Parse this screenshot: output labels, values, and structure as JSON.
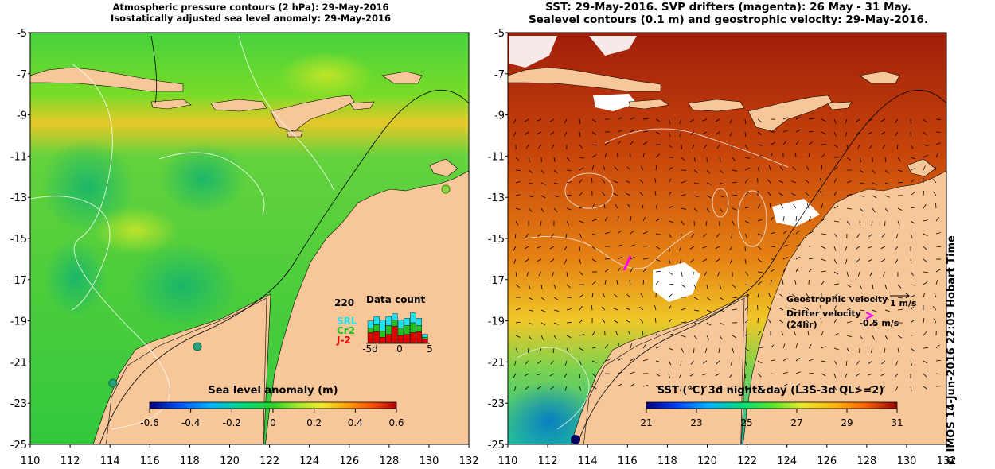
{
  "left_panel": {
    "title_line1": "Atmospheric pressure contours (2 hPa): 29-May-2016",
    "title_line2": "Isostatically adjusted sea level anomaly: 29-May-2016",
    "y_ticks": [
      "-5",
      "-7",
      "-9",
      "-11",
      "-13",
      "-15",
      "-17",
      "-19",
      "-21",
      "-23",
      "-25"
    ],
    "x_ticks": [
      "110",
      "112",
      "114",
      "116",
      "118",
      "120",
      "122",
      "124",
      "126",
      "128",
      "130",
      "132"
    ],
    "colorbar": {
      "label": "Sea level anomaly (m)",
      "ticks": [
        "-0.6",
        "-0.4",
        "-0.2",
        "0",
        "0.2",
        "0.4",
        "0.6"
      ],
      "range": [
        -0.6,
        0.6
      ],
      "colors": [
        "#000080",
        "#0050ff",
        "#00b4ff",
        "#00dc78",
        "#28d228",
        "#a0e628",
        "#f0e628",
        "#ffa000",
        "#ff5000",
        "#b40000"
      ]
    },
    "data_count": {
      "title": "Data count",
      "max_label": "220",
      "legend": [
        {
          "label": "SRL",
          "color": "#20e0f0"
        },
        {
          "label": "Cr2",
          "color": "#20c020"
        },
        {
          "label": "J-2",
          "color": "#e00000"
        }
      ],
      "x_ticks": [
        "-5d",
        "0",
        "5"
      ],
      "days": [
        -5,
        -4,
        -3,
        -2,
        -1,
        0,
        1,
        2,
        3,
        4
      ],
      "stacks": [
        [
          40,
          25,
          55
        ],
        [
          45,
          40,
          60
        ],
        [
          60,
          35,
          30
        ],
        [
          50,
          50,
          45
        ],
        [
          35,
          35,
          90
        ],
        [
          45,
          40,
          40
        ],
        [
          40,
          50,
          45
        ],
        [
          55,
          55,
          55
        ],
        [
          40,
          35,
          60
        ],
        [
          15,
          10,
          20
        ]
      ]
    }
  },
  "right_panel": {
    "title_line1": "SST: 29-May-2016. SVP drifters (magenta): 26 May - 31 May.",
    "title_line2": "Sealevel contours (0.1 m) and geostrophic velocity: 29-May-2016.",
    "y_ticks": [
      "-5",
      "-7",
      "-9",
      "-11",
      "-13",
      "-15",
      "-17",
      "-19",
      "-21",
      "-23",
      "-25"
    ],
    "x_ticks": [
      "110",
      "112",
      "114",
      "116",
      "118",
      "120",
      "122",
      "124",
      "126",
      "128",
      "130",
      "132"
    ],
    "legend": {
      "geostrophic_label": "Geostrophic velocity",
      "geostrophic_scale": "1 m/s",
      "drifter_label": "Drifter velocity",
      "drifter_sub": "(24hr)",
      "drifter_scale": "0.5 m/s"
    },
    "colorbar": {
      "label": "SST (°C) 3d night&day (L3S-3d QL>=2)",
      "ticks": [
        "21",
        "23",
        "25",
        "27",
        "29",
        "31"
      ],
      "range": [
        21,
        31
      ],
      "colors": [
        "#000080",
        "#0040ff",
        "#00b4ff",
        "#00dc78",
        "#50e628",
        "#e6e628",
        "#ffb400",
        "#ff6400",
        "#c81e00",
        "#960000"
      ]
    },
    "credit": "© IMOS 14-Jun-2016 22:09 Hobart Time"
  },
  "colors": {
    "land": "#f7c79a",
    "ocean_sla": "#3cd23c",
    "ocean_sst_north": "#c84a0a",
    "ocean_sst_south": "#28c8a0",
    "drifter": "#ff00ff"
  }
}
